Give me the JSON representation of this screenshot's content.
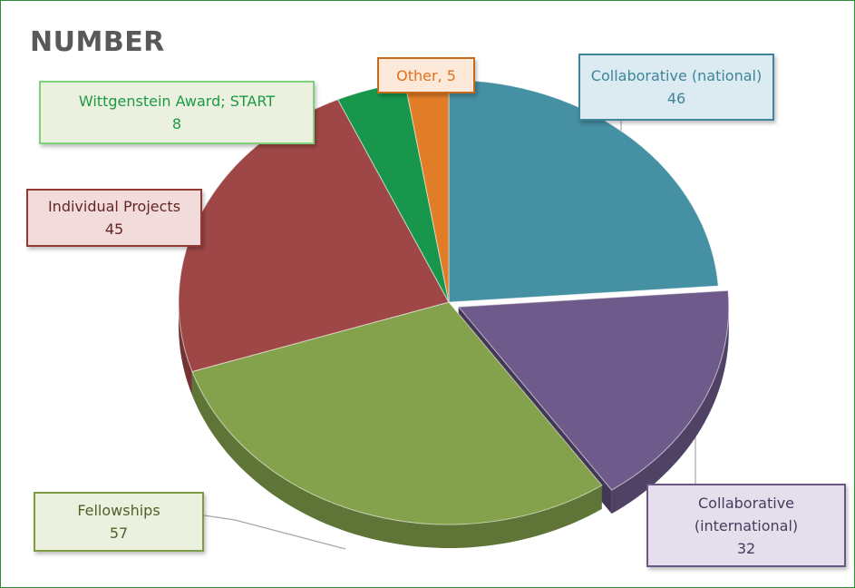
{
  "chart_data": {
    "type": "pie",
    "title": "NUMBER",
    "categories": [
      "Collaborative (national)",
      "Collaborative (international)",
      "Fellowships",
      "Individual Projects",
      "Wittgenstein Award; START",
      "Other"
    ],
    "values": [
      46,
      32,
      57,
      45,
      8,
      5
    ],
    "colors": [
      "#4590a3",
      "#6e5b8c",
      "#84a24c",
      "#9f4747",
      "#17964c",
      "#e27d27"
    ],
    "labels": {
      "collab_national": {
        "name": "Collaborative (national)",
        "value": "46"
      },
      "collab_international": {
        "name_line1": "Collaborative",
        "name_line2": "(international)",
        "value": "32"
      },
      "fellowships": {
        "name": "Fellowships",
        "value": "57"
      },
      "individual": {
        "name": "Individual Projects",
        "value": "45"
      },
      "wittgenstein": {
        "name": "Wittgenstein Award; START",
        "value": "8"
      },
      "other": {
        "name": "Other",
        "value": "5"
      }
    },
    "style": "3d-exploded-pie",
    "legend": "none"
  }
}
